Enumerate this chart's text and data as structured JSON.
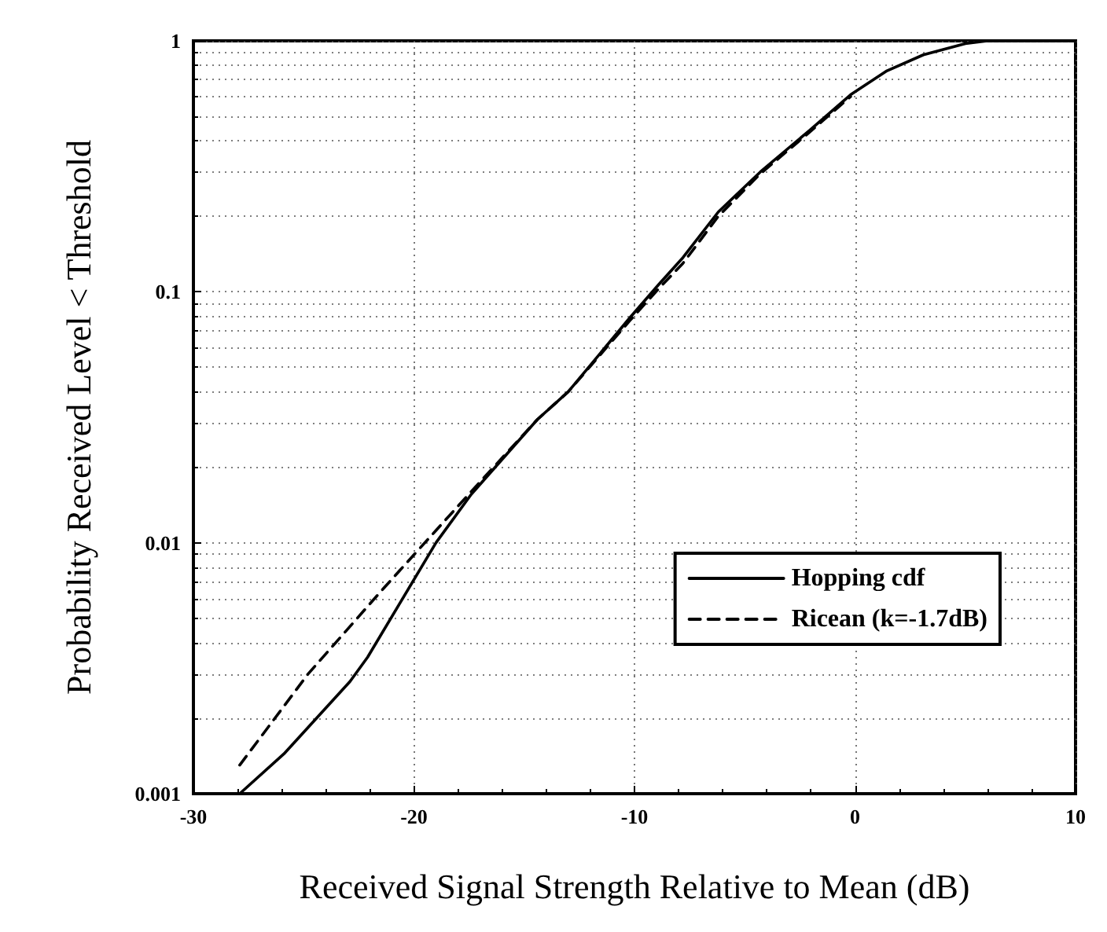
{
  "chart_data": {
    "type": "line",
    "xlabel": "Received Signal Strength Relative to Mean (dB)",
    "ylabel": "Probability Received Level < Threshold",
    "xlim": [
      -30,
      10
    ],
    "xticks": [
      -30,
      -20,
      -10,
      0,
      10
    ],
    "ylim": [
      0.001,
      1
    ],
    "yticks": [
      0.001,
      0.01,
      0.1,
      1
    ],
    "log": "y",
    "grid": true,
    "legend": "bottom right",
    "marker": "none",
    "series": [
      {
        "name": "Hopping cdf",
        "color": "#000000",
        "line_style": "solid",
        "x": [
          -27.9,
          -25.9,
          -22.9,
          -22.1,
          -19,
          -17.4,
          -14.4,
          -13,
          -10.2,
          -8.9,
          -7.8,
          -6.2,
          -4.3,
          -2.1,
          -0.2,
          1.45,
          3.1,
          5,
          6,
          10
        ],
        "values": [
          0.001,
          0.00144,
          0.0028,
          0.0035,
          0.01,
          0.0156,
          0.031,
          0.04,
          0.079,
          0.107,
          0.137,
          0.208,
          0.3,
          0.437,
          0.61,
          0.76,
          0.88,
          0.975,
          1,
          1
        ]
      },
      {
        "name": "Ricean (k=-1.7dB)",
        "color": "#000000",
        "line_style": "dashed",
        "x": [
          -27.9,
          -24.8,
          -21.5,
          -19,
          -17.4,
          -14.4,
          -13,
          -10.2,
          -8.9,
          -7.8,
          -6.2,
          -4.3,
          -2.1,
          -0.2
        ],
        "values": [
          0.0013,
          0.003,
          0.0064,
          0.0112,
          0.016,
          0.031,
          0.04,
          0.077,
          0.103,
          0.13,
          0.2,
          0.295,
          0.43,
          0.6
        ]
      }
    ]
  }
}
